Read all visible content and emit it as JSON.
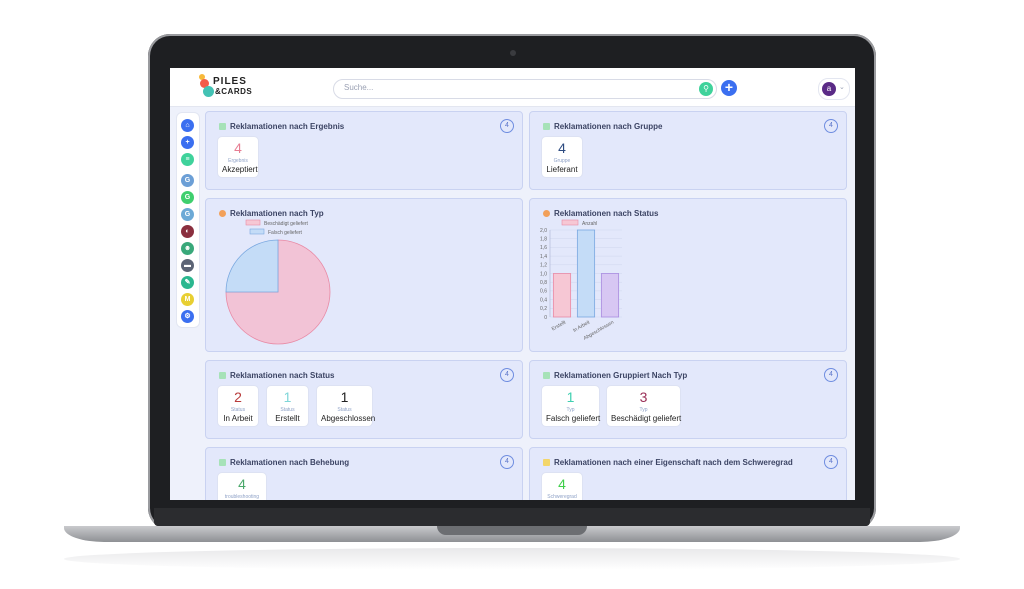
{
  "app": {
    "logo_line1": "PILES",
    "logo_line2": "&CARDS"
  },
  "search": {
    "placeholder": "Suche..."
  },
  "user": {
    "initial": "a"
  },
  "sidebar": {
    "items": [
      {
        "icon": "home-icon",
        "text": "⌂",
        "color": "#3b6ff0"
      },
      {
        "icon": "plus-icon",
        "text": "+",
        "color": "#3b6ff0"
      },
      {
        "icon": "list-icon",
        "text": "≡",
        "color": "#3fd29b"
      },
      {
        "icon": "group-g-icon",
        "text": "G",
        "color": "#6c9fd6"
      },
      {
        "icon": "group-g-icon",
        "text": "G",
        "color": "#3fcf6e"
      },
      {
        "icon": "group-g-icon",
        "text": "G",
        "color": "#6ca9d6"
      },
      {
        "icon": "contrast-icon",
        "text": "◐",
        "color": "#8a2f3f"
      },
      {
        "icon": "users-icon",
        "text": "☻",
        "color": "#39a87a"
      },
      {
        "icon": "truck-icon",
        "text": "▬",
        "color": "#5c6475"
      },
      {
        "icon": "brush-icon",
        "text": "✎",
        "color": "#2bb78f"
      },
      {
        "icon": "letter-m-icon",
        "text": "M",
        "color": "#e8cf32"
      },
      {
        "icon": "gear-icon",
        "text": "⚙",
        "color": "#3b6ff0"
      }
    ]
  },
  "cards": {
    "ergebnis": {
      "title": "Reklamationen nach Ergebnis",
      "count": "4",
      "stats": [
        {
          "num": "4",
          "sub": "Ergebnis",
          "label": "Akzeptiert",
          "color": "#e77e93"
        }
      ]
    },
    "gruppe": {
      "title": "Reklamationen nach Gruppe",
      "count": "4",
      "stats": [
        {
          "num": "4",
          "sub": "Gruppe",
          "label": "Lieferant",
          "color": "#2d4b80"
        }
      ]
    },
    "typ": {
      "title": "Reklamationen nach Typ",
      "legend": [
        {
          "name": "Beschädigt geliefert",
          "color": "#f6c7d4"
        },
        {
          "name": "Falsch geliefert",
          "color": "#c4dcf7"
        }
      ]
    },
    "status_chart": {
      "title": "Reklamationen nach Status",
      "legend": "Anzahl"
    },
    "status": {
      "title": "Reklamationen nach Status",
      "count": "4",
      "stats": [
        {
          "num": "2",
          "sub": "Status",
          "label": "In Arbeit",
          "color": "#b83b3b"
        },
        {
          "num": "1",
          "sub": "Status",
          "label": "Erstellt",
          "color": "#7fd6d8"
        },
        {
          "num": "1",
          "sub": "Status",
          "label": "Abgeschlossen",
          "color": "#222222"
        }
      ]
    },
    "gruppiert": {
      "title": "Reklamationen Gruppiert Nach Typ",
      "count": "4",
      "stats": [
        {
          "num": "1",
          "sub": "Typ",
          "label": "Falsch geliefert",
          "color": "#3fcfb0"
        },
        {
          "num": "3",
          "sub": "Typ",
          "label": "Beschädigt geliefert",
          "color": "#9a2f57"
        }
      ]
    },
    "behebung": {
      "title": "Reklamationen nach Behebung",
      "count": "4",
      "stats": [
        {
          "num": "4",
          "sub": "troubleshooting",
          "label": "",
          "color": "#4aa86a"
        }
      ]
    },
    "schweregrad": {
      "title": "Reklamationen nach einer Eigenschaft nach dem Schweregrad",
      "count": "4",
      "stats": [
        {
          "num": "4",
          "sub": "Schweregrad",
          "label": "",
          "color": "#3fcf4a"
        }
      ]
    }
  },
  "chart_data": [
    {
      "type": "pie",
      "categories": [
        "Beschädigt geliefert",
        "Falsch geliefert"
      ],
      "values": [
        3,
        1
      ],
      "colors": [
        "#f2c3d6",
        "#c4dcf7"
      ],
      "legend": "top"
    },
    {
      "type": "bar",
      "categories": [
        "Erstellt",
        "In Arbeit",
        "Abgeschlossen"
      ],
      "values": [
        1,
        2,
        1
      ],
      "series": [
        {
          "name": "Anzahl",
          "values": [
            1,
            2,
            1
          ]
        }
      ],
      "colors": [
        "#f6c7d4",
        "#c4dcf7",
        "#d7c7f3"
      ],
      "ylim": [
        0,
        2
      ],
      "yticks": [
        "0",
        "0,2",
        "0,4",
        "0,6",
        "0,8",
        "1,0",
        "1,2",
        "1,4",
        "1,6",
        "1,8",
        "2,0"
      ],
      "grid": true
    }
  ]
}
